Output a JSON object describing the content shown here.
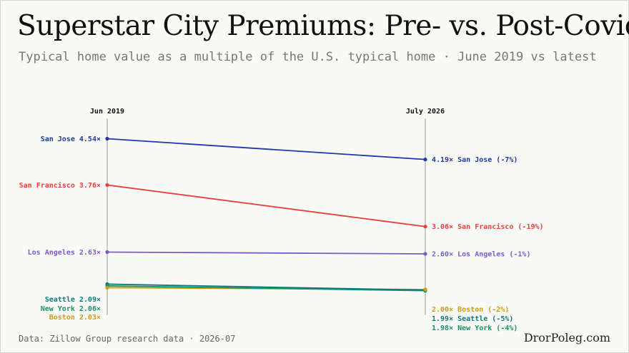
{
  "header": {
    "title": "Superstar City Premiums: Pre- vs. Post-Covid",
    "subtitle": "Typical home value as a multiple of the U.S. typical home · June 2019 vs latest"
  },
  "footer": {
    "source": "Data: Zillow Group research data · 2026-07",
    "brand": "DrorPoleg.com"
  },
  "chart_data": {
    "type": "line",
    "x": [
      "Jun 2019",
      "July 2026"
    ],
    "series": [
      {
        "name": "San Jose",
        "values": [
          4.54,
          4.19
        ],
        "color": "#1f39a8",
        "left_label": "San Jose 4.54×",
        "right_label": "4.19× San Jose (-7%)"
      },
      {
        "name": "San Francisco",
        "values": [
          3.76,
          3.06
        ],
        "color": "#e8413d",
        "left_label": "San Francisco 3.76×",
        "right_label": "3.06× San Francisco (-19%)"
      },
      {
        "name": "Los Angeles",
        "values": [
          2.63,
          2.6
        ],
        "color": "#7b5cc8",
        "left_label": "Los Angeles 2.63×",
        "right_label": "2.60× Los Angeles (-1%)"
      },
      {
        "name": "Seattle",
        "values": [
          2.09,
          1.99
        ],
        "color": "#0f7a7a",
        "left_label": "Seattle 2.09×",
        "right_label": "1.99× Seattle (-5%)"
      },
      {
        "name": "New York",
        "values": [
          2.06,
          1.98
        ],
        "color": "#16936a",
        "left_label": "New York 2.06×",
        "right_label": "1.98× New York (-4%)"
      },
      {
        "name": "Boston",
        "values": [
          2.03,
          2.0
        ],
        "color": "#d29a12",
        "left_label": "Boston 2.03×",
        "right_label": "2.00× Boston (-2%)"
      }
    ]
  }
}
